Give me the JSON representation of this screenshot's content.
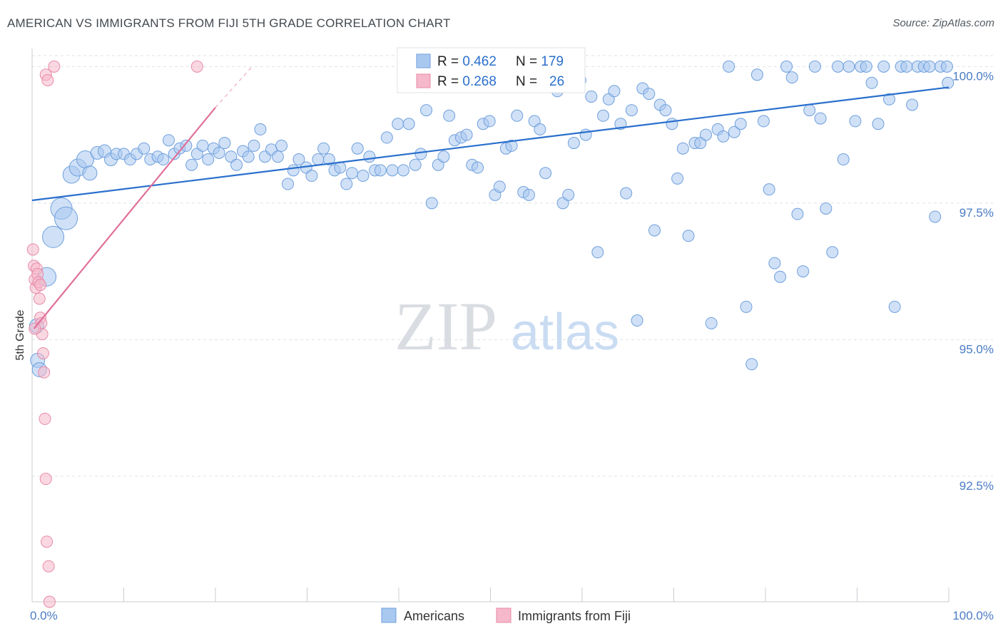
{
  "title": "AMERICAN VS IMMIGRANTS FROM FIJI 5TH GRADE CORRELATION CHART",
  "source": "Source: ZipAtlas.com",
  "watermark": {
    "zip": "ZIP",
    "atlas": "atlas"
  },
  "colors": {
    "americans_fill": "#a9c8f0",
    "americans_stroke": "#6f9fdc",
    "americans_line": "#2a6fcc",
    "fiji_fill": "#f6b8cb",
    "fiji_stroke": "#e88aa8",
    "fiji_line": "#e0709a",
    "axis_label": "#4a7cc4",
    "grid": "#dde1e6"
  },
  "legend": {
    "americans": {
      "r_label": "R = ",
      "r_value": "0.462",
      "n_label": "N = ",
      "n_value": "179"
    },
    "fiji": {
      "r_label": "R = ",
      "r_value": "0.268",
      "n_label": "N = ",
      "n_value": "26"
    }
  },
  "chart_data": {
    "type": "scatter",
    "xlabel": "",
    "ylabel": "5th Grade",
    "xlim": [
      0,
      100
    ],
    "ylim": [
      90.2,
      100.2
    ],
    "x_tick_labels": [
      "0.0%",
      "100.0%"
    ],
    "y_ticks": [
      {
        "value": 100.0,
        "label": "100.0%"
      },
      {
        "value": 97.5,
        "label": "97.5%"
      },
      {
        "value": 95.0,
        "label": "95.0%"
      },
      {
        "value": 92.5,
        "label": "92.5%"
      }
    ],
    "legend_placement": "top-center",
    "series": [
      {
        "name": "Americans",
        "r": 0.462,
        "n": 179,
        "trend": {
          "x": [
            0,
            100
          ],
          "y": [
            97.55,
            99.62
          ]
        },
        "points": [
          [
            0.5,
            95.25,
            10
          ],
          [
            0.6,
            94.62,
            10
          ],
          [
            0.8,
            94.45,
            10
          ],
          [
            1.6,
            96.15,
            13
          ],
          [
            2.3,
            96.88,
            15
          ],
          [
            3.2,
            97.4,
            15
          ],
          [
            3.7,
            97.22,
            16
          ],
          [
            4.3,
            98.02,
            12
          ],
          [
            5.0,
            98.15,
            12
          ],
          [
            5.8,
            98.3,
            12
          ],
          [
            6.3,
            98.05,
            10
          ],
          [
            7.1,
            98.42,
            9
          ],
          [
            7.9,
            98.45,
            9
          ],
          [
            8.6,
            98.3,
            9
          ],
          [
            9.2,
            98.4,
            8
          ],
          [
            10.0,
            98.4,
            8
          ],
          [
            10.7,
            98.3,
            8
          ],
          [
            11.4,
            98.4,
            8
          ],
          [
            12.2,
            98.5,
            8
          ],
          [
            12.9,
            98.3,
            8
          ],
          [
            13.7,
            98.35,
            8
          ],
          [
            14.3,
            98.3,
            8
          ],
          [
            14.9,
            98.65,
            8
          ],
          [
            15.5,
            98.4,
            8
          ],
          [
            16.1,
            98.5,
            8
          ],
          [
            16.8,
            98.55,
            8
          ],
          [
            17.4,
            98.2,
            8
          ],
          [
            18.0,
            98.4,
            8
          ],
          [
            18.6,
            98.55,
            8
          ],
          [
            19.2,
            98.3,
            8
          ],
          [
            19.8,
            98.5,
            8
          ],
          [
            20.4,
            98.42,
            8
          ],
          [
            21.0,
            98.6,
            8
          ],
          [
            21.7,
            98.35,
            8
          ],
          [
            22.3,
            98.2,
            8
          ],
          [
            23.0,
            98.45,
            8
          ],
          [
            23.6,
            98.35,
            8
          ],
          [
            24.2,
            98.55,
            8
          ],
          [
            24.9,
            98.85,
            8
          ],
          [
            25.4,
            98.35,
            8
          ],
          [
            26.1,
            98.48,
            8
          ],
          [
            26.8,
            98.35,
            8
          ],
          [
            27.2,
            98.55,
            8
          ],
          [
            27.9,
            97.85,
            8
          ],
          [
            28.5,
            98.1,
            8
          ],
          [
            29.1,
            98.3,
            8
          ],
          [
            29.9,
            98.15,
            8
          ],
          [
            30.5,
            98.0,
            8
          ],
          [
            31.2,
            98.3,
            8
          ],
          [
            31.8,
            98.5,
            8
          ],
          [
            32.4,
            98.3,
            8
          ],
          [
            33.0,
            98.1,
            8
          ],
          [
            33.6,
            98.15,
            8
          ],
          [
            34.3,
            97.85,
            8
          ],
          [
            34.9,
            98.05,
            8
          ],
          [
            35.5,
            98.5,
            8
          ],
          [
            36.1,
            98.0,
            8
          ],
          [
            36.8,
            98.35,
            8
          ],
          [
            37.4,
            98.1,
            8
          ],
          [
            38.0,
            98.1,
            8
          ],
          [
            38.7,
            98.7,
            8
          ],
          [
            39.3,
            98.1,
            8
          ],
          [
            39.9,
            98.95,
            8
          ],
          [
            40.5,
            98.1,
            8
          ],
          [
            41.1,
            98.95,
            8
          ],
          [
            41.8,
            98.2,
            8
          ],
          [
            42.4,
            98.4,
            8
          ],
          [
            43.0,
            99.2,
            8
          ],
          [
            43.6,
            97.5,
            8
          ],
          [
            44.3,
            98.2,
            8
          ],
          [
            44.9,
            98.35,
            8
          ],
          [
            45.5,
            99.1,
            8
          ],
          [
            46.1,
            98.65,
            8
          ],
          [
            46.8,
            98.7,
            8
          ],
          [
            47.4,
            98.75,
            8
          ],
          [
            48.0,
            98.2,
            8
          ],
          [
            48.6,
            98.15,
            8
          ],
          [
            49.2,
            98.95,
            8
          ],
          [
            49.9,
            99.0,
            8
          ],
          [
            50.5,
            97.65,
            8
          ],
          [
            51.0,
            97.8,
            8
          ],
          [
            51.7,
            98.5,
            8
          ],
          [
            52.3,
            98.55,
            8
          ],
          [
            52.9,
            99.1,
            8
          ],
          [
            53.6,
            97.7,
            8
          ],
          [
            54.2,
            97.65,
            8
          ],
          [
            54.8,
            99.0,
            8
          ],
          [
            55.4,
            98.85,
            8
          ],
          [
            56.0,
            98.05,
            8
          ],
          [
            56.7,
            99.65,
            8
          ],
          [
            57.3,
            99.55,
            8
          ],
          [
            57.9,
            97.5,
            8
          ],
          [
            58.5,
            97.65,
            8
          ],
          [
            59.1,
            98.6,
            8
          ],
          [
            59.8,
            99.75,
            8
          ],
          [
            60.4,
            98.75,
            8
          ],
          [
            61.0,
            99.45,
            8
          ],
          [
            61.7,
            96.6,
            8
          ],
          [
            62.3,
            99.1,
            8
          ],
          [
            62.9,
            99.4,
            8
          ],
          [
            63.5,
            99.55,
            8
          ],
          [
            64.2,
            98.95,
            8
          ],
          [
            64.8,
            97.68,
            8
          ],
          [
            65.4,
            99.2,
            8
          ],
          [
            66.0,
            95.35,
            8
          ],
          [
            66.6,
            99.6,
            8
          ],
          [
            67.3,
            99.5,
            8
          ],
          [
            67.9,
            97.0,
            8
          ],
          [
            68.5,
            99.3,
            8
          ],
          [
            69.1,
            99.2,
            8
          ],
          [
            69.8,
            98.95,
            8
          ],
          [
            70.4,
            97.95,
            8
          ],
          [
            71.0,
            98.5,
            8
          ],
          [
            71.6,
            96.9,
            8
          ],
          [
            72.3,
            98.6,
            8
          ],
          [
            72.9,
            98.6,
            8
          ],
          [
            73.5,
            98.75,
            8
          ],
          [
            74.1,
            95.3,
            8
          ],
          [
            74.8,
            98.85,
            8
          ],
          [
            75.4,
            98.72,
            8
          ],
          [
            76.0,
            100.0,
            8
          ],
          [
            76.6,
            98.8,
            8
          ],
          [
            77.3,
            98.95,
            8
          ],
          [
            77.9,
            95.6,
            8
          ],
          [
            78.5,
            94.55,
            8
          ],
          [
            79.1,
            99.85,
            8
          ],
          [
            79.8,
            99.0,
            8
          ],
          [
            80.4,
            97.75,
            8
          ],
          [
            81.0,
            96.4,
            8
          ],
          [
            81.6,
            96.15,
            8
          ],
          [
            82.3,
            100.0,
            8
          ],
          [
            82.9,
            99.8,
            8
          ],
          [
            83.5,
            97.3,
            8
          ],
          [
            84.1,
            96.25,
            8
          ],
          [
            84.8,
            99.2,
            8
          ],
          [
            85.4,
            100.0,
            8
          ],
          [
            86.0,
            99.05,
            8
          ],
          [
            86.6,
            97.4,
            8
          ],
          [
            87.3,
            96.6,
            8
          ],
          [
            87.9,
            100.0,
            8
          ],
          [
            88.5,
            98.3,
            8
          ],
          [
            89.1,
            100.0,
            8
          ],
          [
            89.8,
            99.0,
            8
          ],
          [
            90.4,
            100.0,
            8
          ],
          [
            91.0,
            100.0,
            8
          ],
          [
            91.6,
            99.7,
            8
          ],
          [
            92.3,
            98.95,
            8
          ],
          [
            92.9,
            100.0,
            8
          ],
          [
            93.5,
            99.4,
            8
          ],
          [
            94.1,
            95.6,
            8
          ],
          [
            94.8,
            100.0,
            8
          ],
          [
            95.4,
            100.0,
            8
          ],
          [
            96.0,
            99.3,
            8
          ],
          [
            96.6,
            100.0,
            8
          ],
          [
            97.3,
            100.0,
            8
          ],
          [
            97.9,
            100.0,
            8
          ],
          [
            98.5,
            97.25,
            8
          ],
          [
            99.1,
            100.0,
            8
          ],
          [
            99.8,
            100.0,
            8
          ],
          [
            99.9,
            99.7,
            8
          ]
        ]
      },
      {
        "name": "Immigrants from Fiji",
        "r": 0.268,
        "n": 26,
        "trend": {
          "x": [
            0.2,
            20
          ],
          "y": [
            95.2,
            99.25
          ]
        },
        "trend_dashed": {
          "x": [
            20,
            24
          ],
          "y": [
            99.25,
            100.0
          ]
        },
        "points": [
          [
            0.1,
            96.65,
            8
          ],
          [
            0.2,
            96.35,
            8
          ],
          [
            0.3,
            96.1,
            8
          ],
          [
            0.4,
            95.95,
            8
          ],
          [
            0.5,
            96.3,
            8
          ],
          [
            0.6,
            96.2,
            8
          ],
          [
            0.7,
            96.05,
            8
          ],
          [
            0.8,
            95.75,
            8
          ],
          [
            0.9,
            95.4,
            8
          ],
          [
            1.0,
            95.3,
            8
          ],
          [
            1.1,
            95.1,
            8
          ],
          [
            1.2,
            94.75,
            8
          ],
          [
            1.3,
            94.4,
            8
          ],
          [
            1.4,
            93.55,
            8
          ],
          [
            1.5,
            92.45,
            8
          ],
          [
            1.6,
            91.3,
            8
          ],
          [
            1.8,
            90.85,
            8
          ],
          [
            1.9,
            90.2,
            8
          ],
          [
            1.5,
            99.85,
            8
          ],
          [
            1.7,
            99.75,
            8
          ],
          [
            2.4,
            100.0,
            8
          ],
          [
            18.0,
            100.0,
            8
          ],
          [
            0.3,
            95.2,
            8
          ],
          [
            0.9,
            96.0,
            8
          ]
        ]
      }
    ]
  },
  "bottom_legend": [
    {
      "label": "Americans",
      "color_key": "americans"
    },
    {
      "label": "Immigrants from Fiji",
      "color_key": "fiji"
    }
  ]
}
